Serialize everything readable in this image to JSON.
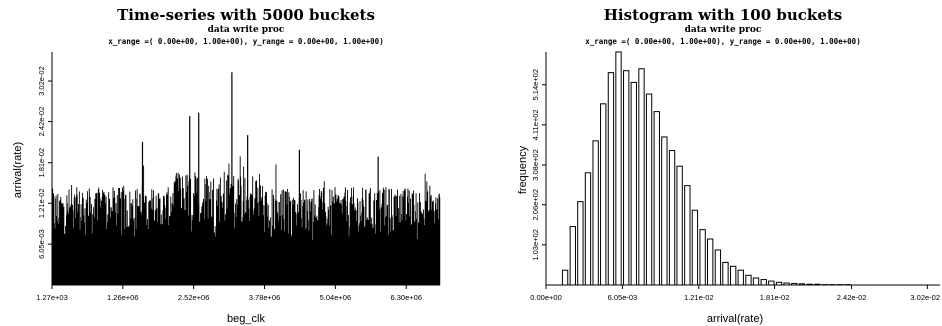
{
  "chart_data": [
    {
      "type": "bar",
      "title": "Time-series with 5000 buckets",
      "subtitle": "data write proc",
      "range_text": "x_range =( 0.00e+00, 1.00e+00), y_range = 0.00e+00, 1.00e+00)",
      "xlabel": "beg_clk",
      "ylabel": "arrival(rate)",
      "xlim": [
        1270,
        6900000
      ],
      "ylim": [
        0,
        0.0345
      ],
      "x_ticks": [
        {
          "value": 1270,
          "label": "1.27e+03"
        },
        {
          "value": 1260000,
          "label": "1.26e+06"
        },
        {
          "value": 2520000,
          "label": "2.52e+06"
        },
        {
          "value": 3780000,
          "label": "3.78e+06"
        },
        {
          "value": 5040000,
          "label": "5.04e+06"
        },
        {
          "value": 6300000,
          "label": "6.30e+06"
        }
      ],
      "y_ticks": [
        {
          "value": 0.00605,
          "label": "6.05e-03"
        },
        {
          "value": 0.0121,
          "label": "1.21e-02"
        },
        {
          "value": 0.0181,
          "label": "1.81e-02"
        },
        {
          "value": 0.0242,
          "label": "2.42e-02"
        },
        {
          "value": 0.0302,
          "label": "3.02e-02"
        }
      ],
      "bucket_count": 5000,
      "baseline": 0.0065,
      "typical_peak": 0.0145,
      "notable_spikes": [
        {
          "x": 3200000,
          "y": 0.0315
        },
        {
          "x": 2610000,
          "y": 0.0255
        },
        {
          "x": 2450000,
          "y": 0.025
        },
        {
          "x": 3480000,
          "y": 0.0222
        },
        {
          "x": 1610000,
          "y": 0.0212
        },
        {
          "x": 4400000,
          "y": 0.02
        },
        {
          "x": 5800000,
          "y": 0.019
        }
      ]
    },
    {
      "type": "bar",
      "title": "Histogram with 100 buckets",
      "subtitle": "data write proc",
      "range_text": "x_range =( 0.00e+00, 1.00e+00), y_range = 0.00e+00, 1.00e+00)",
      "xlabel": "arrival(rate)",
      "ylabel": "frequency",
      "xlim": [
        0,
        0.0312
      ],
      "ylim": [
        0,
        598
      ],
      "x_ticks": [
        {
          "value": 0,
          "label": "0.00e+00"
        },
        {
          "value": 0.00605,
          "label": "6.05e-03"
        },
        {
          "value": 0.0121,
          "label": "1.21e-02"
        },
        {
          "value": 0.0181,
          "label": "1.81e-02"
        },
        {
          "value": 0.0242,
          "label": "2.42e-02"
        },
        {
          "value": 0.0302,
          "label": "3.02e-02"
        }
      ],
      "y_ticks": [
        {
          "value": 103,
          "label": "1.03e+02"
        },
        {
          "value": 206,
          "label": "2.06e+02"
        },
        {
          "value": 308,
          "label": "3.08e+02"
        },
        {
          "value": 411,
          "label": "4.11e+02"
        },
        {
          "value": 514,
          "label": "5.14e+02"
        }
      ],
      "bin_width": 0.000604,
      "bin_starts": [
        0.00121,
        0.00182,
        0.00242,
        0.00302,
        0.00363,
        0.00423,
        0.00484,
        0.00544,
        0.00605,
        0.00665,
        0.00726,
        0.00786,
        0.00847,
        0.00907,
        0.00968,
        0.01028,
        0.01089,
        0.01149,
        0.0121,
        0.0127,
        0.01331,
        0.01391,
        0.01452,
        0.01512,
        0.01573,
        0.01633,
        0.01694,
        0.01754,
        0.01815,
        0.01875,
        0.01936,
        0.01996,
        0.02057,
        0.02117,
        0.02178,
        0.02238,
        0.02299,
        0.02359
      ],
      "values": [
        38,
        150,
        214,
        288,
        370,
        465,
        545,
        598,
        550,
        520,
        555,
        490,
        445,
        380,
        345,
        305,
        255,
        192,
        142,
        118,
        90,
        58,
        48,
        38,
        25,
        18,
        14,
        10,
        7,
        5,
        4,
        3,
        2,
        2,
        1,
        1,
        1,
        1
      ]
    }
  ]
}
